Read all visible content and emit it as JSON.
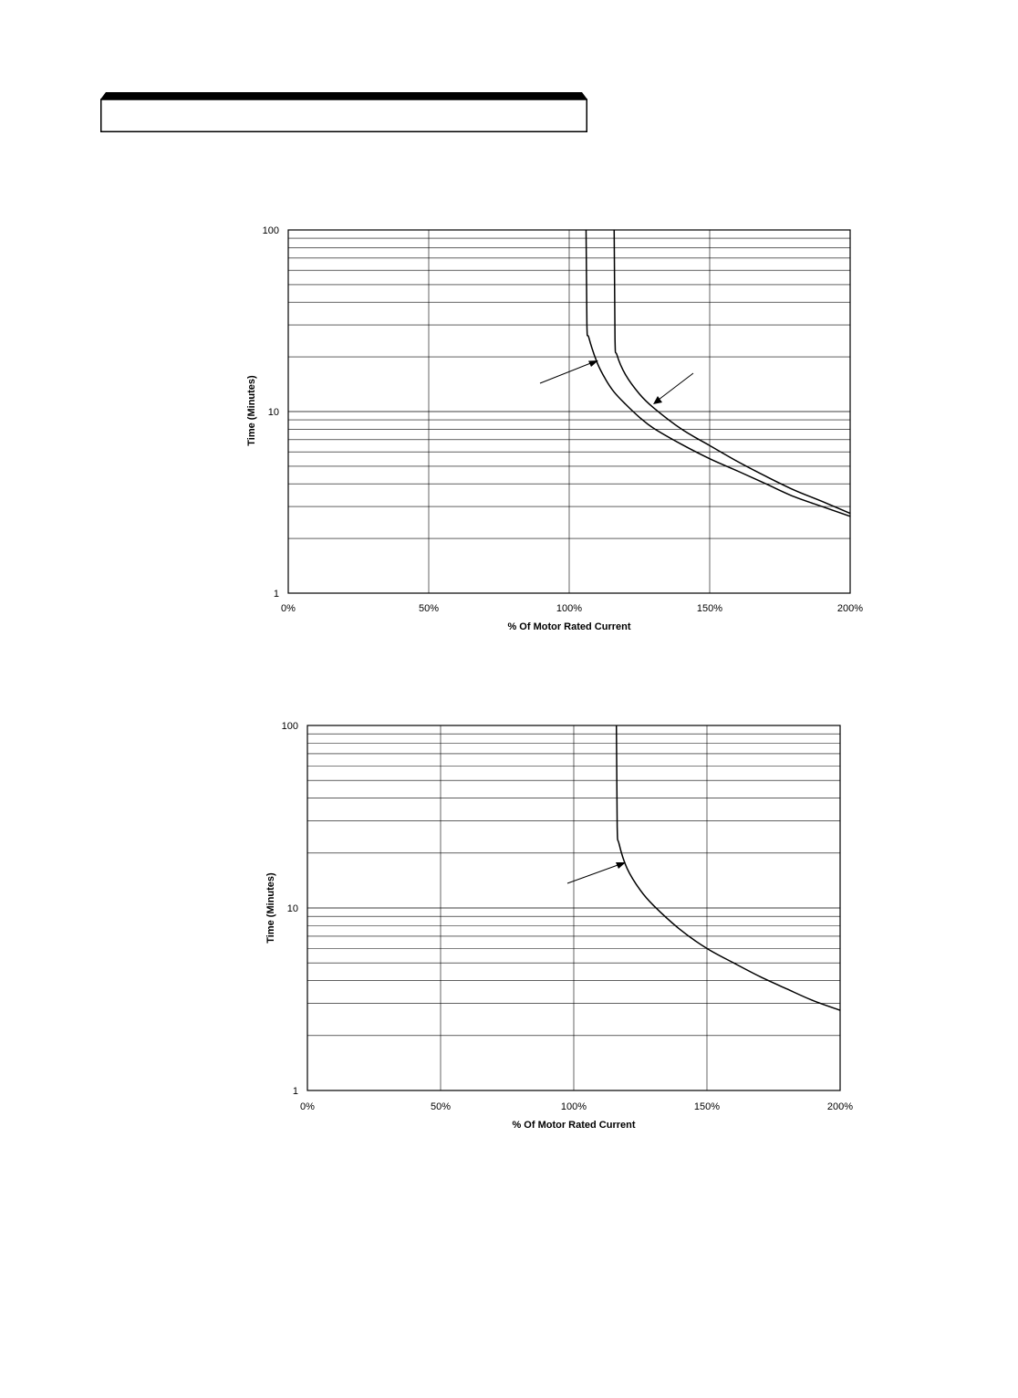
{
  "chart_data": [
    {
      "type": "line",
      "xlabel": "% Of Motor Rated Current",
      "ylabel": "Time (Minutes)",
      "xlim": [
        0,
        200
      ],
      "ylim": [
        1,
        100
      ],
      "y_scale": "log",
      "grid": true,
      "x_ticks": [
        "0%",
        "50%",
        "100%",
        "150%",
        "200%"
      ],
      "y_ticks": [
        "1",
        "10",
        "100"
      ],
      "series": [
        {
          "x": [
            106,
            106.3,
            107,
            110,
            113,
            116,
            120,
            125,
            130,
            140,
            150,
            160,
            170,
            180,
            190,
            200
          ],
          "values": [
            100,
            30,
            25.5,
            18.5,
            15,
            12.8,
            11,
            9.3,
            8.1,
            6.6,
            5.5,
            4.7,
            4.0,
            3.4,
            3.0,
            2.65
          ]
        },
        {
          "x": [
            116,
            116.3,
            117,
            120,
            125,
            130,
            140,
            150,
            160,
            170,
            180,
            190,
            200
          ],
          "values": [
            100,
            25,
            20.5,
            16,
            12.5,
            10.5,
            8,
            6.5,
            5.3,
            4.4,
            3.7,
            3.2,
            2.75
          ]
        }
      ]
    },
    {
      "type": "line",
      "xlabel": "% Of Motor Rated Current",
      "ylabel": "Time (Minutes)",
      "xlim": [
        0,
        200
      ],
      "ylim": [
        1,
        100
      ],
      "y_scale": "log",
      "grid": true,
      "x_ticks": [
        "0%",
        "50%",
        "100%",
        "150%",
        "200%"
      ],
      "y_ticks": [
        "1",
        "10",
        "100"
      ],
      "series": [
        {
          "x": [
            116,
            116.3,
            117,
            120,
            125,
            130,
            140,
            150,
            160,
            170,
            180,
            190,
            200
          ],
          "values": [
            100,
            28,
            22.5,
            16.5,
            12.5,
            10.3,
            7.6,
            6.0,
            5.0,
            4.2,
            3.6,
            3.1,
            2.75
          ]
        }
      ]
    }
  ]
}
